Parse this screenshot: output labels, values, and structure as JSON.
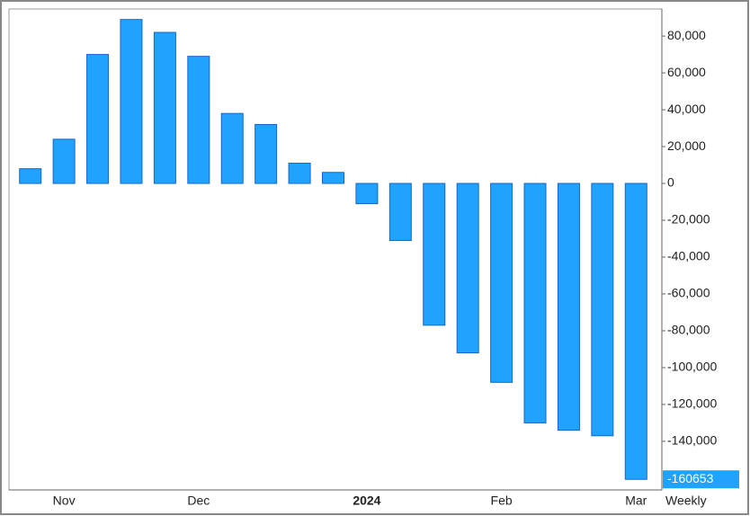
{
  "chart_data": {
    "type": "bar",
    "categories": [
      null,
      "Nov",
      null,
      null,
      null,
      "Dec",
      null,
      null,
      null,
      null,
      "2024",
      null,
      null,
      null,
      "Feb",
      null,
      null,
      null,
      "Mar"
    ],
    "series": [
      {
        "color": "#1fa3ff",
        "values": [
          8000,
          24000,
          70000,
          89000,
          82000,
          69000,
          38000,
          32000,
          11000,
          6000,
          -11000,
          -31000,
          -77000,
          -92000,
          -108000,
          -130000,
          -134000,
          -137000,
          -160653
        ]
      }
    ],
    "period": "Weekly",
    "ylim": [
      -166400,
      94700
    ],
    "yticks": [
      {
        "value": 80000,
        "label": "80,000"
      },
      {
        "value": 60000,
        "label": "60,000"
      },
      {
        "value": 40000,
        "label": "40,000"
      },
      {
        "value": 20000,
        "label": "20,000"
      },
      0,
      {
        "value": -20000,
        "label": "-20,000"
      },
      {
        "value": -40000,
        "label": "-40,000"
      },
      {
        "value": -60000,
        "label": "-60,000"
      },
      {
        "value": -80000,
        "label": "-80,000"
      },
      {
        "value": -100000,
        "label": "-100,000"
      },
      {
        "value": -120000,
        "label": "-120,000"
      },
      {
        "value": -140000,
        "label": "-140,000"
      }
    ],
    "grid": false
  }
}
